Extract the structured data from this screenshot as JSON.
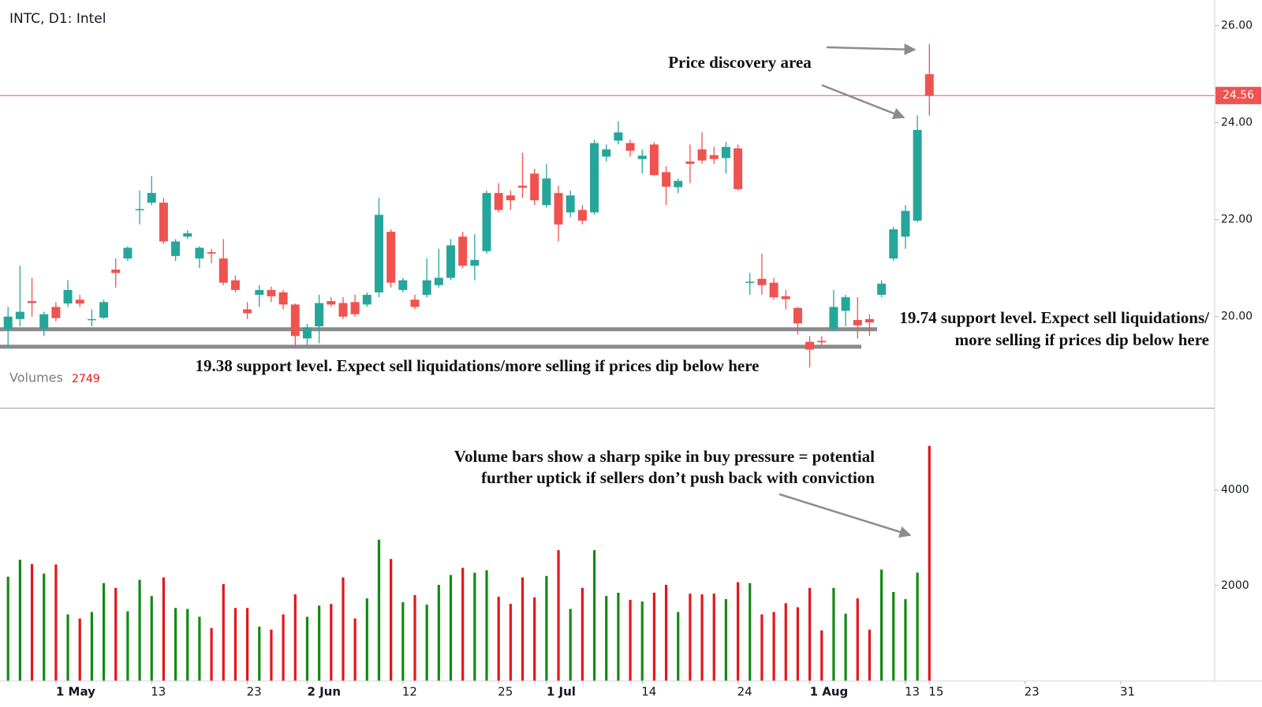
{
  "chart_data": {
    "type": "candlestick",
    "title": "INTC, D1: Intel",
    "categories": [
      null,
      null,
      null,
      null,
      "1 May",
      null,
      null,
      null,
      null,
      null,
      null,
      null,
      "13",
      null,
      null,
      null,
      null,
      null,
      null,
      null,
      "23",
      null,
      null,
      null,
      null,
      "2 Jun",
      null,
      null,
      null,
      null,
      null,
      null,
      null,
      "12",
      null,
      null,
      null,
      null,
      null,
      null,
      null,
      "25",
      null,
      null,
      null,
      "1 Jul",
      null,
      null,
      null,
      null,
      null,
      null,
      null,
      "14",
      null,
      null,
      null,
      null,
      null,
      null,
      null,
      "24",
      null,
      null,
      null,
      null,
      null,
      "1 Aug",
      null,
      null,
      null,
      null,
      null,
      null,
      null,
      "13",
      null,
      "15",
      null,
      null,
      null,
      null,
      null,
      null,
      null,
      "23",
      null,
      null,
      null,
      null,
      null,
      null,
      null,
      "31"
    ],
    "open": [
      19.75,
      19.95,
      20.32,
      19.75,
      20.2,
      20.27,
      20.35,
      19.93,
      19.98,
      20.97,
      21.2,
      22.2,
      22.35,
      22.35,
      21.25,
      21.65,
      21.2,
      21.33,
      21.2,
      20.75,
      20.15,
      20.45,
      20.55,
      20.5,
      20.25,
      19.55,
      19.8,
      20.32,
      20.28,
      20.3,
      20.25,
      20.5,
      21.75,
      20.55,
      20.35,
      20.45,
      20.65,
      20.8,
      21.65,
      21.05,
      21.35,
      22.55,
      22.5,
      22.7,
      22.95,
      22.3,
      22.55,
      22.15,
      22.2,
      22.15,
      23.3,
      23.63,
      23.58,
      23.25,
      23.55,
      22.98,
      22.67,
      23.2,
      23.45,
      23.33,
      23.27,
      23.47,
      20.7,
      20.78,
      20.7,
      20.42,
      20.18,
      19.48,
      19.5,
      19.75,
      20.12,
      19.93,
      19.95,
      20.45,
      21.2,
      21.65,
      21.98,
      25.0,
      null,
      null,
      null,
      null,
      null,
      null,
      null,
      null,
      null,
      null,
      null,
      null,
      null,
      null,
      null,
      null
    ],
    "high": [
      20.2,
      21.05,
      20.8,
      20.1,
      20.3,
      20.75,
      20.45,
      20.15,
      20.35,
      21.2,
      21.45,
      22.6,
      22.9,
      22.45,
      21.6,
      21.78,
      21.45,
      21.4,
      21.6,
      20.85,
      20.3,
      20.65,
      20.62,
      20.55,
      20.27,
      19.85,
      20.45,
      20.4,
      20.4,
      20.45,
      20.5,
      22.45,
      21.8,
      20.8,
      20.45,
      21.2,
      21.4,
      21.6,
      21.75,
      21.7,
      22.6,
      22.75,
      22.6,
      23.38,
      23.05,
      23.15,
      22.7,
      22.6,
      22.3,
      23.65,
      23.55,
      24.03,
      23.65,
      23.45,
      23.6,
      23.1,
      22.85,
      23.55,
      23.8,
      23.5,
      23.6,
      23.55,
      20.9,
      21.3,
      20.8,
      20.55,
      20.2,
      19.6,
      19.6,
      20.55,
      20.45,
      20.4,
      20.05,
      20.75,
      21.85,
      22.3,
      24.15,
      25.62,
      null,
      null,
      null,
      null,
      null,
      null,
      null,
      null,
      null,
      null,
      null,
      null,
      null,
      null,
      null,
      null
    ],
    "low": [
      19.35,
      19.8,
      20.0,
      19.6,
      19.9,
      20.2,
      20.2,
      19.8,
      19.95,
      20.6,
      21.15,
      21.9,
      22.3,
      21.5,
      21.15,
      21.6,
      21.0,
      21.1,
      20.65,
      20.5,
      19.95,
      20.2,
      20.3,
      20.15,
      19.35,
      19.4,
      19.45,
      20.2,
      19.95,
      20.0,
      20.2,
      20.4,
      20.6,
      20.5,
      20.15,
      20.4,
      20.6,
      20.75,
      21.0,
      20.75,
      21.3,
      22.15,
      22.2,
      22.45,
      22.3,
      22.25,
      21.55,
      22.05,
      21.9,
      22.1,
      23.2,
      23.55,
      23.3,
      22.95,
      22.9,
      22.3,
      22.55,
      22.75,
      23.15,
      23.15,
      22.95,
      22.6,
      20.45,
      20.45,
      20.35,
      20.15,
      19.63,
      18.95,
      19.4,
      19.7,
      19.8,
      19.55,
      19.6,
      20.4,
      21.15,
      21.4,
      21.95,
      24.15,
      null,
      null,
      null,
      null,
      null,
      null,
      null,
      null,
      null,
      null,
      null,
      null,
      null,
      null,
      null,
      null
    ],
    "close": [
      20.0,
      20.1,
      20.28,
      20.05,
      19.97,
      20.55,
      20.27,
      19.95,
      20.3,
      20.9,
      21.42,
      22.22,
      22.55,
      21.55,
      21.55,
      21.72,
      21.42,
      21.3,
      20.7,
      20.55,
      20.07,
      20.55,
      20.42,
      20.25,
      19.6,
      19.78,
      20.28,
      20.25,
      20.0,
      20.05,
      20.45,
      22.1,
      20.7,
      20.75,
      20.2,
      20.75,
      20.8,
      21.47,
      21.05,
      21.17,
      22.55,
      22.2,
      22.4,
      22.66,
      22.4,
      22.85,
      21.9,
      22.5,
      21.98,
      23.58,
      23.45,
      23.8,
      23.42,
      23.32,
      22.92,
      22.68,
      22.8,
      23.15,
      23.22,
      23.25,
      23.5,
      22.63,
      20.72,
      20.65,
      20.4,
      20.36,
      19.86,
      19.32,
      19.47,
      20.2,
      20.4,
      19.82,
      19.88,
      20.68,
      21.8,
      22.18,
      23.85,
      24.56,
      null,
      null,
      null,
      null,
      null,
      null,
      null,
      null,
      null,
      null,
      null,
      null,
      null,
      null,
      null,
      null
    ],
    "up_color": "#26a69a",
    "down_color": "#ef5350",
    "ylim": [
      18.11,
      26.53
    ],
    "yticks": [
      {
        "value": 20,
        "label": "20.00"
      },
      {
        "value": 22,
        "label": "22.00"
      },
      {
        "value": 24,
        "label": "24.00"
      },
      {
        "value": 26,
        "label": "26.00"
      }
    ],
    "last_price": {
      "value": 24.56,
      "color": "#ef5350"
    },
    "volume": {
      "name": "Volumes",
      "legend_value": 2749,
      "up_color": "#138a13",
      "down_color": "#e3161b",
      "values": [
        2185,
        2540,
        2450,
        2250,
        2440,
        1395,
        1310,
        1445,
        2050,
        1950,
        1460,
        2120,
        1780,
        2170,
        1530,
        1510,
        1345,
        1110,
        2030,
        1530,
        1530,
        1140,
        1075,
        1395,
        1815,
        1345,
        1580,
        1615,
        2170,
        1310,
        1730,
        2960,
        2555,
        1650,
        1800,
        1600,
        2015,
        2220,
        2370,
        2270,
        2320,
        1765,
        1615,
        2170,
        1750,
        2200,
        2740,
        1510,
        1950,
        2740,
        1780,
        1850,
        1700,
        1665,
        1850,
        2015,
        1445,
        1830,
        1815,
        1830,
        1715,
        2070,
        2050,
        1395,
        1445,
        1630,
        1545,
        1950,
        1060,
        1950,
        1410,
        1730,
        1075,
        2335,
        1865,
        1715,
        2270,
        4925,
        null,
        null,
        null,
        null,
        null,
        null,
        null,
        null,
        null,
        null,
        null,
        null,
        null,
        null,
        null,
        null
      ],
      "ylim": [
        0,
        5680
      ],
      "yticks": [
        2000,
        4000
      ]
    },
    "annotations": [
      {
        "lines": [
          "Price discovery area"
        ]
      },
      {
        "lines": [
          "19.74 support level. Expect sell liquidations/",
          "more selling if prices dip below here"
        ],
        "level": 19.74
      },
      {
        "lines": [
          "19.38 support level. Expect sell liquidations/more selling if prices dip below here"
        ],
        "level": 19.38
      },
      {
        "lines": [
          "Volume bars show a sharp spike in buy pressure = potential",
          "further uptick if sellers don’t push back with conviction"
        ]
      }
    ]
  }
}
